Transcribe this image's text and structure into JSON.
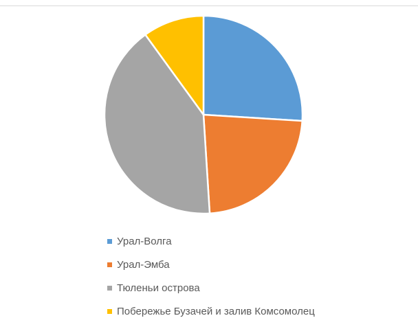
{
  "colors": {
    "ural_volga": "#5b9bd5",
    "ural_emba": "#ed7d31",
    "tyuleni": "#a5a5a5",
    "buzachi": "#ffc000",
    "slice_border": "#ffffff"
  },
  "chart_data": {
    "type": "pie",
    "title": "",
    "categories": [
      "Урал-Волга",
      "Урал-Эмба",
      "Тюленьи острова",
      "Побережье Бузачей и залив Комсомолец"
    ],
    "values": [
      26,
      23,
      41,
      10
    ],
    "colors": [
      "#5b9bd5",
      "#ed7d31",
      "#a5a5a5",
      "#ffc000"
    ],
    "legend": "bottom",
    "start_angle": "12 o'clock",
    "direction": "clockwise"
  }
}
